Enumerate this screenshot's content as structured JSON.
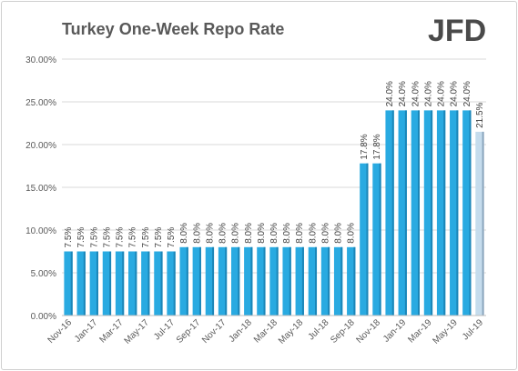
{
  "chart_data": {
    "type": "bar",
    "title": "Turkey One-Week Repo Rate",
    "categories": [
      "Nov-16",
      "Dec-16",
      "Jan-17",
      "Feb-17",
      "Mar-17",
      "Apr-17",
      "May-17",
      "Jun-17",
      "Jul-17",
      "Aug-17",
      "Sep-17",
      "Oct-17",
      "Nov-17",
      "Dec-17",
      "Jan-18",
      "Feb-18",
      "Mar-18",
      "Apr-18",
      "May-18",
      "Jun-18",
      "Jul-18",
      "Aug-18",
      "Sep-18",
      "Oct-18",
      "Nov-18",
      "Dec-18",
      "Jan-19",
      "Feb-19",
      "Mar-19",
      "Apr-19",
      "May-19",
      "Jun-19",
      "Jul-19"
    ],
    "values": [
      7.5,
      7.5,
      7.5,
      7.5,
      7.5,
      7.5,
      7.5,
      7.5,
      7.5,
      8.0,
      8.0,
      8.0,
      8.0,
      8.0,
      8.0,
      8.0,
      8.0,
      8.0,
      8.0,
      8.0,
      8.0,
      8.0,
      8.0,
      17.8,
      17.8,
      24.0,
      24.0,
      24.0,
      24.0,
      24.0,
      24.0,
      24.0,
      21.5
    ],
    "data_labels": [
      "7.5%",
      "7.5%",
      "7.5%",
      "7.5%",
      "7.5%",
      "7.5%",
      "7.5%",
      "7.5%",
      "7.5%",
      "8.0%",
      "8.0%",
      "8.0%",
      "8.0%",
      "8.0%",
      "8.0%",
      "8.0%",
      "8.0%",
      "8.0%",
      "8.0%",
      "8.0%",
      "8.0%",
      "8.0%",
      "8.0%",
      "17.8%",
      "17.8%",
      "24.0%",
      "24.0%",
      "24.0%",
      "24.0%",
      "24.0%",
      "24.0%",
      "24.0%",
      "21.5%"
    ],
    "highlighted": [
      false,
      false,
      false,
      false,
      false,
      false,
      false,
      false,
      false,
      false,
      false,
      false,
      false,
      false,
      false,
      false,
      false,
      false,
      false,
      false,
      false,
      false,
      false,
      false,
      false,
      false,
      false,
      false,
      false,
      false,
      false,
      false,
      true
    ],
    "x_tick_labels": [
      "Nov-16",
      "",
      "Jan-17",
      "",
      "Mar-17",
      "",
      "May-17",
      "",
      "Jul-17",
      "",
      "Sep-17",
      "",
      "Nov-17",
      "",
      "Jan-18",
      "",
      "Mar-18",
      "",
      "May-18",
      "",
      "Jul-18",
      "",
      "Sep-18",
      "",
      "Nov-18",
      "",
      "Jan-19",
      "",
      "Mar-19",
      "",
      "May-19",
      "",
      "Jul-19"
    ],
    "y_ticks": [
      0,
      5,
      10,
      15,
      20,
      25,
      30
    ],
    "y_tick_labels": [
      "0.00%",
      "5.00%",
      "10.00%",
      "15.00%",
      "20.00%",
      "25.00%",
      "30.00%"
    ],
    "ylim": [
      0,
      30
    ],
    "grid": "horizontal",
    "xlabel": "",
    "ylabel": ""
  },
  "logo": {
    "text": "JFD"
  },
  "colors": {
    "bar": "#29aae1",
    "bar_dark": "#1b86b8",
    "bar_highlight": "#c5dced",
    "bar_highlight_dark": "#8ba6bd",
    "grid": "#d9d9d9",
    "axis_text": "#595959",
    "label_text": "#404040",
    "title": "#595959",
    "logo": "#4a4a4a"
  }
}
